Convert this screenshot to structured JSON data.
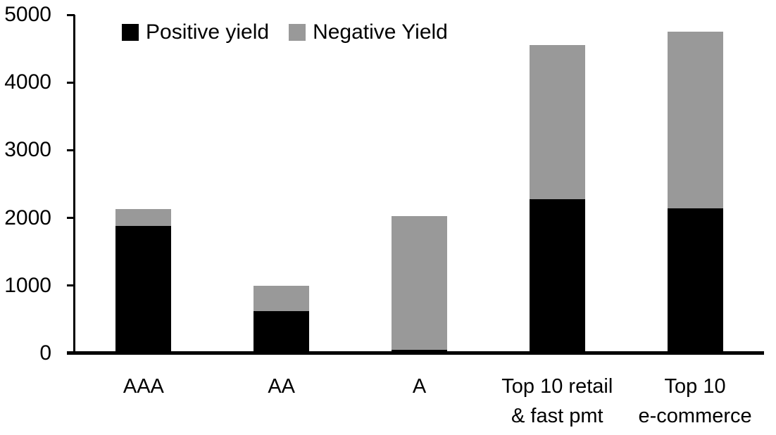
{
  "chart_data": {
    "type": "bar",
    "stacked": true,
    "title": "",
    "xlabel": "",
    "ylabel": "",
    "categories": [
      "AAA",
      "AA",
      "A",
      "Top 10 retail\n& fast pmt",
      "Top 10\ne-commerce"
    ],
    "series": [
      {
        "name": "Positive yield",
        "color": "#000000",
        "values": [
          1880,
          620,
          50,
          2280,
          2140
        ]
      },
      {
        "name": "Negative Yield",
        "color": "#999999",
        "values": [
          250,
          380,
          1980,
          2270,
          2610
        ]
      }
    ],
    "totals": [
      2130,
      1000,
      2030,
      4550,
      4750
    ],
    "ylim": [
      0,
      5000
    ],
    "yticks": [
      0,
      1000,
      2000,
      3000,
      4000,
      5000
    ],
    "legend_position": "top",
    "grid": false,
    "axis_color": "#000000",
    "background_color": "#ffffff"
  }
}
